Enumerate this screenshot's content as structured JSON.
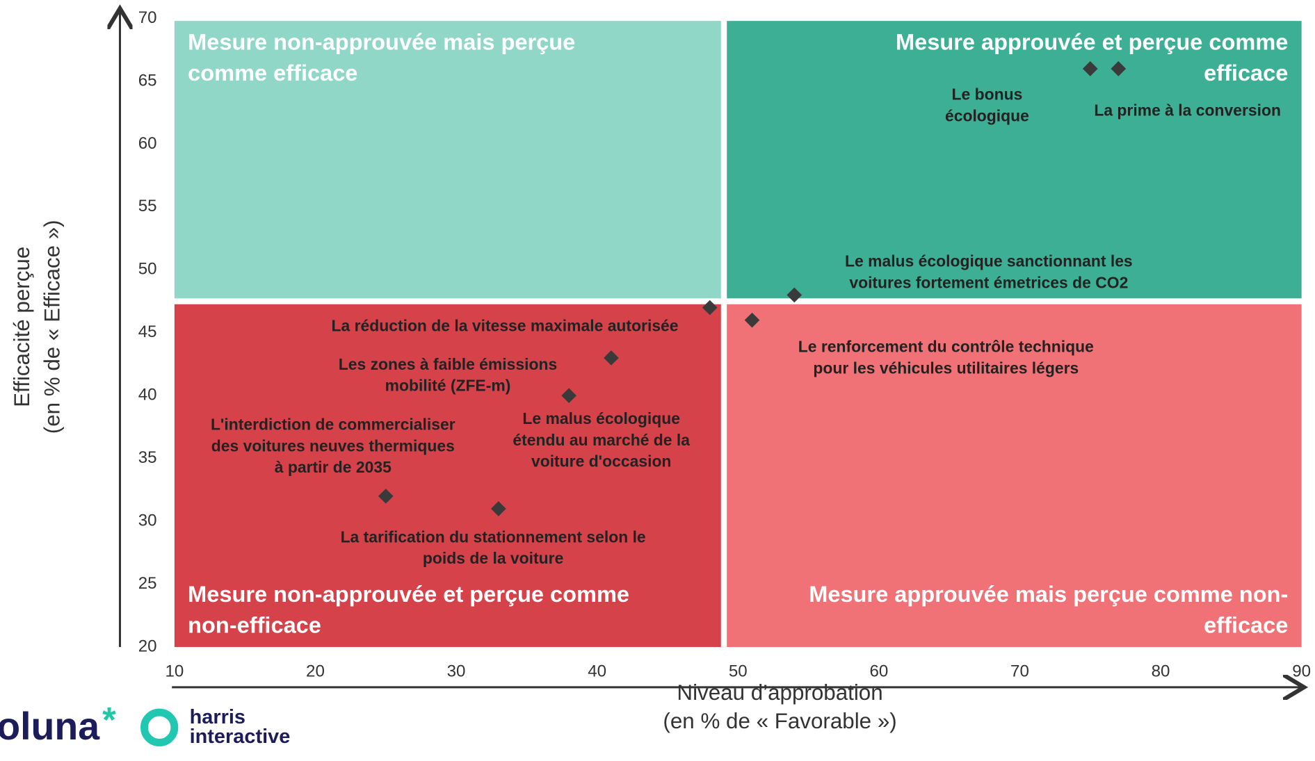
{
  "chart_data": {
    "type": "scatter",
    "x_label": [
      "Niveau d’approbation",
      "(en % de « Favorable »)"
    ],
    "y_label": [
      "Efficacité perçue",
      "(en % de « Efficace »)"
    ],
    "xlim": [
      10,
      90
    ],
    "xticks": [
      10,
      20,
      30,
      40,
      50,
      60,
      70,
      80,
      90
    ],
    "ylim": [
      20,
      70
    ],
    "yticks": [
      20,
      25,
      30,
      35,
      40,
      45,
      50,
      55,
      60,
      65,
      70
    ],
    "x_split": 49,
    "y_split": 47.5,
    "quadrants": [
      {
        "title": [
          "Mesure non-approuvée mais perçue",
          "comme efficace"
        ],
        "color": "#90d7c8"
      },
      {
        "title": [
          "Mesure approuvée et perçue comme",
          "efficace"
        ],
        "color": "#3daf95"
      },
      {
        "title": [
          "Mesure non-approuvée et perçue comme",
          "non-efficace"
        ],
        "color": "#d6424a"
      },
      {
        "title": [
          "Mesure approuvée mais perçue comme non-",
          "efficace"
        ],
        "color": "#f07276"
      }
    ],
    "marker_color": "#3a3a3a",
    "points": [
      {
        "label": [
          "Le bonus",
          "écologique"
        ],
        "x": 75,
        "y": 66
      },
      {
        "label": [
          "La prime à la conversion"
        ],
        "x": 77,
        "y": 66
      },
      {
        "label": [
          "Le malus écologique sanctionnant les",
          "voitures fortement émetrices de CO2"
        ],
        "x": 54,
        "y": 48
      },
      {
        "label": [
          "Le renforcement du contrôle technique",
          "pour les véhicules utilitaires légers"
        ],
        "x": 51,
        "y": 46
      },
      {
        "label": [
          "La réduction de la vitesse maximale autorisée"
        ],
        "x": 48,
        "y": 47
      },
      {
        "label": [
          "Les zones à faible émissions",
          "mobilité (ZFE-m)"
        ],
        "x": 41,
        "y": 43
      },
      {
        "label": [
          "Le malus écologique",
          "étendu au marché de la",
          "voiture d'occasion"
        ],
        "x": 38,
        "y": 40
      },
      {
        "label": [
          "L'interdiction de commercialiser",
          "des voitures neuves thermiques",
          "à partir de 2035"
        ],
        "x": 25,
        "y": 32
      },
      {
        "label": [
          "La tarification du stationnement selon le",
          "poids de la voiture"
        ],
        "x": 33,
        "y": 31
      }
    ],
    "logos": {
      "toluna": "oluna",
      "asterisk": "*",
      "harris": "harris",
      "interactive": "interactive"
    }
  }
}
